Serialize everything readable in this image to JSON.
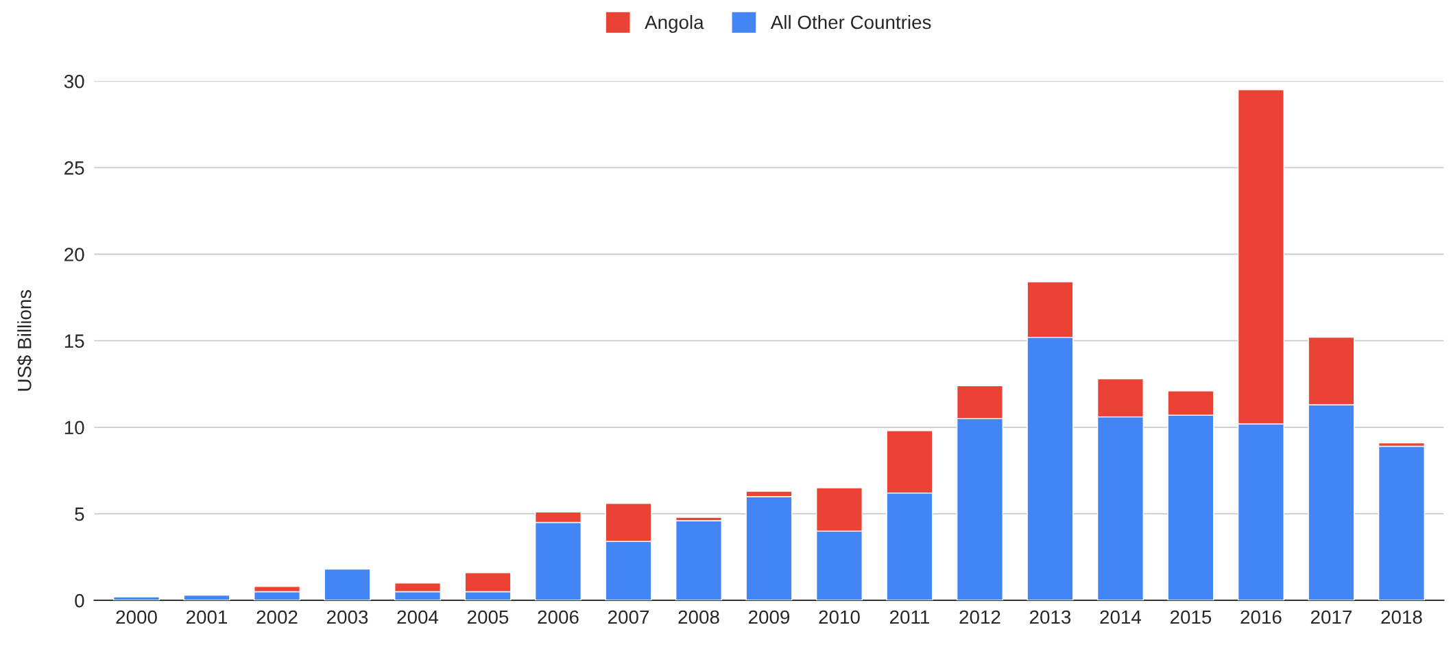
{
  "chart_data": {
    "type": "bar",
    "stacked": true,
    "ylabel": "US$ Billions",
    "categories": [
      "2000",
      "2001",
      "2002",
      "2003",
      "2004",
      "2005",
      "2006",
      "2007",
      "2008",
      "2009",
      "2010",
      "2011",
      "2012",
      "2013",
      "2014",
      "2015",
      "2016",
      "2017",
      "2018"
    ],
    "series": [
      {
        "name": "All Other Countries",
        "color": "#4285f4",
        "values": [
          0.2,
          0.3,
          0.5,
          1.8,
          0.5,
          0.5,
          4.5,
          3.4,
          4.6,
          6.0,
          4.0,
          6.2,
          10.5,
          15.2,
          10.6,
          10.7,
          10.2,
          11.3,
          8.9
        ]
      },
      {
        "name": "Angola",
        "color": "#ea4335",
        "values": [
          null,
          null,
          0.3,
          null,
          0.5,
          1.1,
          0.6,
          2.2,
          0.2,
          0.3,
          2.5,
          3.6,
          1.9,
          3.2,
          2.2,
          1.4,
          19.3,
          3.9,
          0.2
        ]
      }
    ],
    "ylim": [
      0,
      30
    ],
    "yticks": [
      0,
      5,
      10,
      15,
      20,
      25,
      30
    ],
    "grid": "y",
    "legend": "top"
  }
}
